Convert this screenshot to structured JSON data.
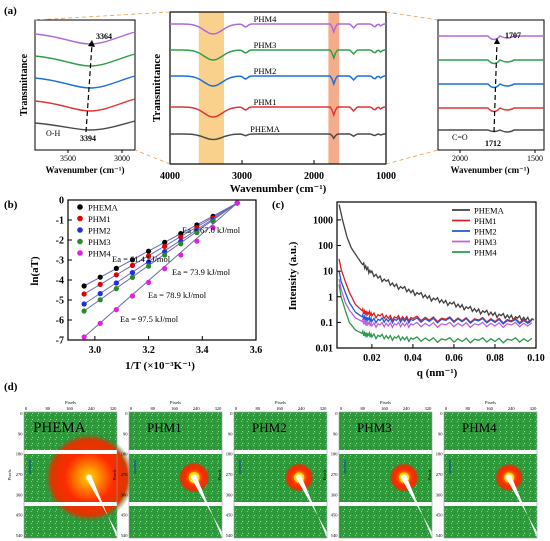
{
  "panel_labels": [
    "(a)",
    "(b)",
    "(c)",
    "(d)"
  ],
  "ftir_left": {
    "ylabel": "Transmittance",
    "xlabel": "Wavenumber (cm⁻¹)",
    "xticks": [
      "3500",
      "3000"
    ],
    "annot_top": "3364",
    "annot_bottom": "3394",
    "annot_group": "O-H"
  },
  "ftir_main": {
    "ylabel": "Transmittance",
    "xlabel": "Wavenumber (cm⁻¹)",
    "xticks": [
      "4000",
      "3000",
      "2000",
      "1000"
    ],
    "series": [
      "PHM4",
      "PHM3",
      "PHM2",
      "PHM1",
      "PHEMA"
    ],
    "colors": [
      "#b069d8",
      "#2f9e4a",
      "#1c6fdc",
      "#e03434",
      "#4a4a4a"
    ]
  },
  "ftir_right": {
    "xlabel": "Wavenumber (cm⁻¹)",
    "xticks": [
      "2000",
      "1500"
    ],
    "annot_top": "1707",
    "annot_bottom": "1712",
    "annot_group": "C=O"
  },
  "chart_data": [
    {
      "type": "scatter",
      "panel": "b",
      "xlabel": "1/T (×10⁻³K⁻¹)",
      "ylabel": "ln(aT)",
      "xlim": [
        2.9,
        3.6
      ],
      "ylim": [
        -7,
        0
      ],
      "xticks": [
        "3.0",
        "3.2",
        "3.4",
        "3.6"
      ],
      "yticks": [
        "0",
        "-1",
        "-2",
        "-3",
        "-4",
        "-5",
        "-6",
        "-7"
      ],
      "legend_position": "top-left",
      "series": [
        {
          "name": "PHEMA",
          "color": "#000000",
          "x": [
            2.96,
            3.02,
            3.08,
            3.14,
            3.2,
            3.26,
            3.32,
            3.38,
            3.44,
            3.53
          ],
          "y": [
            -4.3,
            -3.86,
            -3.42,
            -2.99,
            -2.56,
            -2.12,
            -1.68,
            -1.25,
            -0.82,
            -0.15
          ]
        },
        {
          "name": "PHM1",
          "color": "#e00000",
          "x": [
            2.96,
            3.02,
            3.08,
            3.14,
            3.2,
            3.26,
            3.32,
            3.38,
            3.44,
            3.53
          ],
          "y": [
            -4.7,
            -4.22,
            -3.74,
            -3.27,
            -2.8,
            -2.32,
            -1.85,
            -1.38,
            -0.9,
            -0.15
          ]
        },
        {
          "name": "PHM2",
          "color": "#1e2ee0",
          "x": [
            2.96,
            3.02,
            3.08,
            3.14,
            3.2,
            3.26,
            3.32,
            3.38,
            3.44,
            3.53
          ],
          "y": [
            -5.2,
            -4.68,
            -4.15,
            -3.63,
            -3.11,
            -2.58,
            -2.06,
            -1.53,
            -1.01,
            -0.15
          ]
        },
        {
          "name": "PHM3",
          "color": "#2a8a2a",
          "x": [
            2.96,
            3.02,
            3.08,
            3.14,
            3.2,
            3.26,
            3.32,
            3.38,
            3.44,
            3.53
          ],
          "y": [
            -5.55,
            -4.99,
            -4.43,
            -3.87,
            -3.31,
            -2.75,
            -2.19,
            -1.63,
            -1.07,
            -0.15
          ]
        },
        {
          "name": "PHM4",
          "color": "#e020e0",
          "x": [
            2.96,
            3.02,
            3.08,
            3.14,
            3.2,
            3.26,
            3.32,
            3.38,
            3.44,
            3.53
          ],
          "y": [
            -6.85,
            -6.17,
            -5.48,
            -4.8,
            -4.12,
            -3.43,
            -2.75,
            -2.06,
            -1.38,
            -0.15
          ]
        }
      ],
      "annotations": [
        "Ea = 61.4 kJ/mol",
        "Ea = 67.0 kJ/mol",
        "Ea = 73.9 kJ/mol",
        "Ea = 78.9 kJ/mol",
        "Ea = 97.5 kJ/mol"
      ]
    },
    {
      "type": "line",
      "panel": "c",
      "xlabel": "q (nm⁻¹)",
      "ylabel": "Intensity (a.u.)",
      "xlim": [
        0.003,
        0.1
      ],
      "ylim": [
        0.01,
        5000
      ],
      "yscale": "log",
      "xticks": [
        "0.02",
        "0.04",
        "0.06",
        "0.08",
        "0.10"
      ],
      "yticks": [
        "1000",
        "100",
        "10",
        "1",
        "0.1",
        "0.01"
      ],
      "legend_position": "top-right",
      "series": [
        {
          "name": "PHEMA",
          "color": "#404040",
          "x": [
            0.004,
            0.006,
            0.008,
            0.01,
            0.015,
            0.02,
            0.03,
            0.04,
            0.05,
            0.06,
            0.07,
            0.08,
            0.09,
            0.1
          ],
          "y": [
            4000,
            800,
            200,
            80,
            20,
            8,
            3,
            1.5,
            0.8,
            0.5,
            0.3,
            0.2,
            0.15,
            0.12
          ]
        },
        {
          "name": "PHM1",
          "color": "#e02020",
          "x": [
            0.004,
            0.005,
            0.007,
            0.009,
            0.012,
            0.016,
            0.02,
            0.03,
            0.04,
            0.06,
            0.08,
            0.1
          ],
          "y": [
            30,
            12,
            4,
            1.5,
            0.5,
            0.25,
            0.2,
            0.15,
            0.14,
            0.13,
            0.12,
            0.11
          ]
        },
        {
          "name": "PHM2",
          "color": "#1e5ad8",
          "x": [
            0.004,
            0.005,
            0.007,
            0.009,
            0.012,
            0.016,
            0.02,
            0.03,
            0.04,
            0.06,
            0.08,
            0.1
          ],
          "y": [
            10,
            4,
            1.5,
            0.6,
            0.25,
            0.15,
            0.12,
            0.12,
            0.12,
            0.12,
            0.11,
            0.1
          ]
        },
        {
          "name": "PHM3",
          "color": "#c060e0",
          "x": [
            0.004,
            0.005,
            0.007,
            0.009,
            0.012,
            0.016,
            0.02,
            0.03,
            0.04,
            0.06,
            0.08,
            0.1
          ],
          "y": [
            5,
            2,
            0.6,
            0.3,
            0.15,
            0.1,
            0.08,
            0.08,
            0.08,
            0.08,
            0.08,
            0.08
          ]
        },
        {
          "name": "PHM4",
          "color": "#2a9a4a",
          "x": [
            0.004,
            0.005,
            0.007,
            0.009,
            0.012,
            0.016,
            0.02,
            0.03,
            0.04,
            0.06,
            0.08,
            0.1
          ],
          "y": [
            3,
            1,
            0.3,
            0.1,
            0.05,
            0.035,
            0.03,
            0.025,
            0.022,
            0.02,
            0.02,
            0.02
          ]
        }
      ]
    }
  ],
  "saxs": {
    "panels": [
      "PHEMA",
      "PHM1",
      "PHM2",
      "PHM3",
      "PHM4"
    ],
    "top_axis_title": "Pixels",
    "side_axis_title": "Pixels",
    "top_ticks": [
      "0",
      "80",
      "160",
      "240",
      "320"
    ],
    "side_ticks": [
      "0",
      "90",
      "180",
      "270",
      "360",
      "450",
      "540"
    ],
    "halo_level": [
      1.0,
      0.35,
      0.33,
      0.33,
      0.32
    ]
  }
}
